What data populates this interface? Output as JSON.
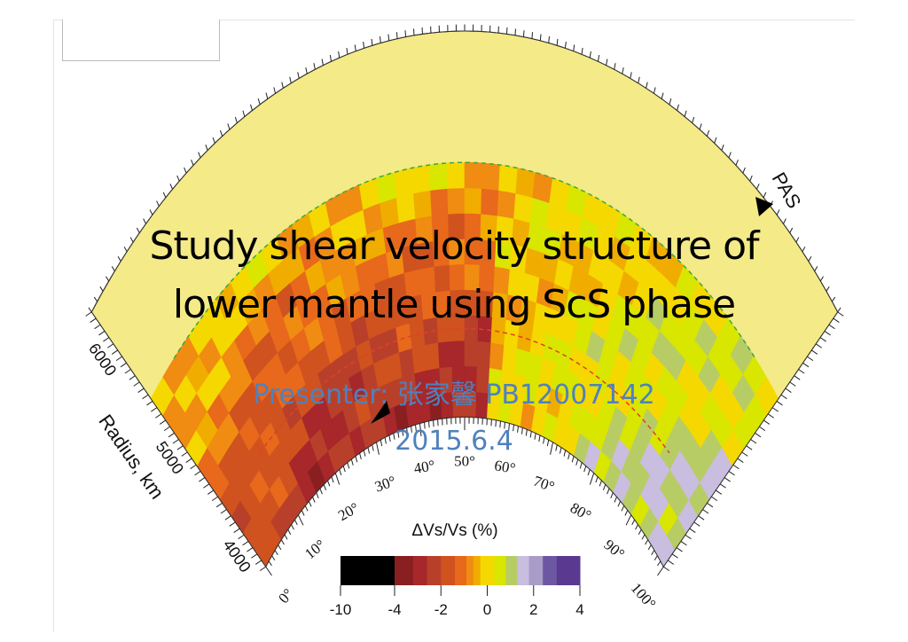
{
  "slide": {
    "title_line1": "Study shear velocity structure of",
    "title_line2": "lower mantle using ScS phase",
    "presenter": "Presenter: 张家馨  PB12007142",
    "date": "2015.6.4"
  },
  "figure": {
    "station_label": "PAS",
    "radius_axis_label": "Radius, km",
    "radius_ticks": [
      "4000",
      "5000",
      "6000"
    ],
    "distance_ticks": [
      "0°",
      "10°",
      "20°",
      "30°",
      "40°",
      "50°",
      "60°",
      "70°",
      "80°",
      "90°",
      "100°"
    ],
    "colorbar": {
      "title": "ΔVs/Vs (%)",
      "tick_labels": [
        "-10",
        "-4",
        "-2",
        "0",
        "2",
        "4"
      ],
      "colors": [
        "#000000",
        "#8a1f22",
        "#a8272a",
        "#b8402a",
        "#d0521f",
        "#e8681c",
        "#f08c12",
        "#f0ad00",
        "#f5d800",
        "#d8e600",
        "#b8cc66",
        "#c9bde0",
        "#a99cc8",
        "#6c57a3",
        "#5a3a90"
      ]
    },
    "colors": {
      "upper_mantle": "#f4ea87",
      "dashed_green": "#3aa845",
      "dashed_red": "#e0402a"
    }
  }
}
